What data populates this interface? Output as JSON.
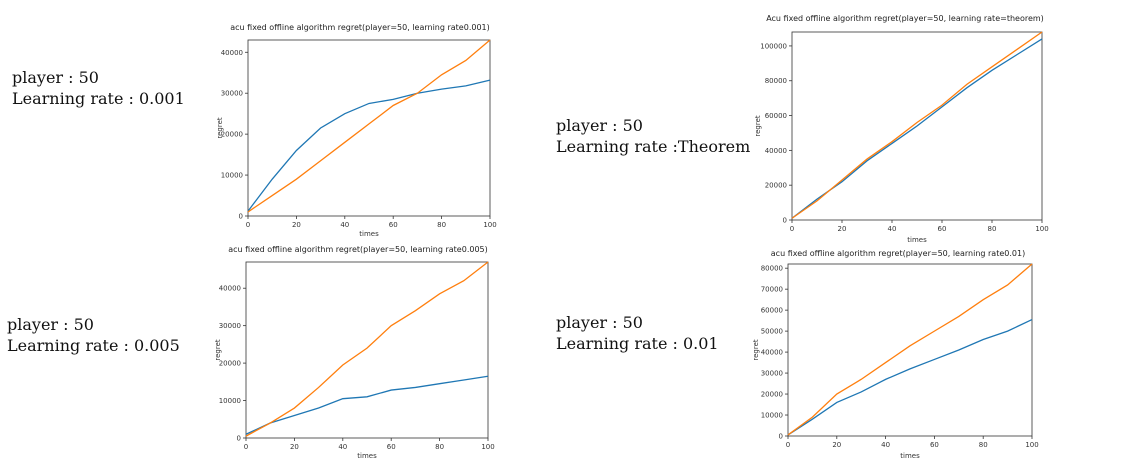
{
  "labels": [
    {
      "player": "player : 50",
      "rate": "Learning rate : 0.001"
    },
    {
      "player": "player : 50",
      "rate": "Learning rate :Theorem"
    },
    {
      "player": "player : 50",
      "rate": "Learning rate : 0.005"
    },
    {
      "player": "player : 50",
      "rate": "Learning rate : 0.01"
    }
  ],
  "colors": {
    "series_a": "#1f77b4",
    "series_b": "#ff7f0e"
  },
  "chart_data": [
    {
      "type": "line",
      "title": "acu fixed offline algorithm regret(player=50, learning rate0.001)",
      "xlabel": "times",
      "ylabel": "regret",
      "xlim": [
        0,
        100
      ],
      "ylim": [
        0,
        43000
      ],
      "xticks": [
        0,
        20,
        40,
        60,
        80,
        100
      ],
      "yticks": [
        0,
        10000,
        20000,
        30000,
        40000
      ],
      "x": [
        0,
        10,
        20,
        30,
        40,
        50,
        60,
        70,
        80,
        90,
        100
      ],
      "series": [
        {
          "color": "#1f77b4",
          "values": [
            1200,
            9000,
            16000,
            21500,
            25000,
            27500,
            28500,
            30000,
            31000,
            31800,
            33200
          ]
        },
        {
          "color": "#ff7f0e",
          "values": [
            1000,
            5000,
            9000,
            13500,
            18000,
            22500,
            27000,
            30000,
            34500,
            38000,
            43000
          ]
        }
      ]
    },
    {
      "type": "line",
      "title": "Acu fixed offline algorithm regret(player=50, learning rate=theorem)",
      "xlabel": "times",
      "ylabel": "regret",
      "xlim": [
        0,
        100
      ],
      "ylim": [
        0,
        108000
      ],
      "xticks": [
        0,
        20,
        40,
        60,
        80,
        100
      ],
      "yticks": [
        0,
        20000,
        40000,
        60000,
        80000,
        100000
      ],
      "x": [
        0,
        10,
        20,
        30,
        40,
        50,
        60,
        70,
        80,
        90,
        100
      ],
      "series": [
        {
          "color": "#1f77b4",
          "values": [
            1000,
            12000,
            22000,
            34000,
            44000,
            54000,
            65000,
            76000,
            86000,
            95000,
            104000
          ]
        },
        {
          "color": "#ff7f0e",
          "values": [
            1000,
            11000,
            23000,
            35000,
            45000,
            56000,
            66000,
            78000,
            88000,
            98000,
            108000
          ]
        }
      ]
    },
    {
      "type": "line",
      "title": "acu fixed offline algorithm regret(player=50, learning rate0.005)",
      "xlabel": "times",
      "ylabel": "regret",
      "xlim": [
        0,
        100
      ],
      "ylim": [
        0,
        47000
      ],
      "xticks": [
        0,
        20,
        40,
        60,
        80,
        100
      ],
      "yticks": [
        0,
        10000,
        20000,
        30000,
        40000
      ],
      "x": [
        0,
        10,
        20,
        30,
        40,
        50,
        60,
        70,
        80,
        90,
        100
      ],
      "series": [
        {
          "color": "#1f77b4",
          "values": [
            1000,
            4000,
            6000,
            8000,
            10500,
            11000,
            12800,
            13500,
            14500,
            15500,
            16500
          ]
        },
        {
          "color": "#ff7f0e",
          "values": [
            500,
            4000,
            8000,
            13500,
            19500,
            24000,
            30000,
            34000,
            38500,
            42000,
            47000
          ]
        }
      ]
    },
    {
      "type": "line",
      "title": "acu fixed offline algorithm regret(player=50, learning rate0.01)",
      "xlabel": "times",
      "ylabel": "regret",
      "xlim": [
        0,
        100
      ],
      "ylim": [
        0,
        82000
      ],
      "xticks": [
        0,
        20,
        40,
        60,
        80,
        100
      ],
      "yticks": [
        0,
        10000,
        20000,
        30000,
        40000,
        50000,
        60000,
        70000,
        80000
      ],
      "x": [
        0,
        10,
        20,
        30,
        40,
        50,
        60,
        70,
        80,
        90,
        100
      ],
      "series": [
        {
          "color": "#1f77b4",
          "values": [
            500,
            8000,
            16000,
            21000,
            27000,
            32000,
            36500,
            41000,
            46000,
            50000,
            55500
          ]
        },
        {
          "color": "#ff7f0e",
          "values": [
            500,
            9000,
            20000,
            27000,
            35000,
            43000,
            50000,
            57000,
            65000,
            72000,
            82000
          ]
        }
      ]
    }
  ]
}
